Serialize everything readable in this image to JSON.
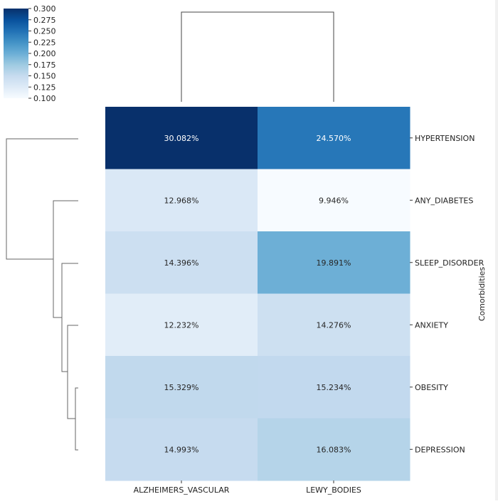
{
  "chart_data": {
    "type": "heatmap",
    "columns": [
      "ALZHEIMERS_VASCULAR",
      "LEWY_BODIES"
    ],
    "rows": [
      "HYPERTENSION",
      "ANY_DIABETES",
      "SLEEP_DISORDER",
      "ANXIETY",
      "OBESITY",
      "DEPRESSION"
    ],
    "values": [
      [
        0.30082,
        0.2457
      ],
      [
        0.12968,
        0.09946
      ],
      [
        0.14396,
        0.19891
      ],
      [
        0.12232,
        0.14276
      ],
      [
        0.15329,
        0.15234
      ],
      [
        0.14993,
        0.16083
      ]
    ],
    "cell_labels": [
      [
        "30.082%",
        "24.570%"
      ],
      [
        "12.968%",
        "9.946%"
      ],
      [
        "14.396%",
        "19.891%"
      ],
      [
        "12.232%",
        "14.276%"
      ],
      [
        "15.329%",
        "15.234%"
      ],
      [
        "14.993%",
        "16.083%"
      ]
    ],
    "ylabel": "Comorbidities",
    "colormap": "Blues",
    "vmin": 0.1,
    "vmax": 0.3,
    "colorbar_ticks": [
      "0.300",
      "0.275",
      "0.250",
      "0.225",
      "0.200",
      "0.175",
      "0.150",
      "0.125",
      "0.100"
    ],
    "colorbar_position": "top-left",
    "column_dendrogram": true,
    "row_dendrogram": true
  }
}
